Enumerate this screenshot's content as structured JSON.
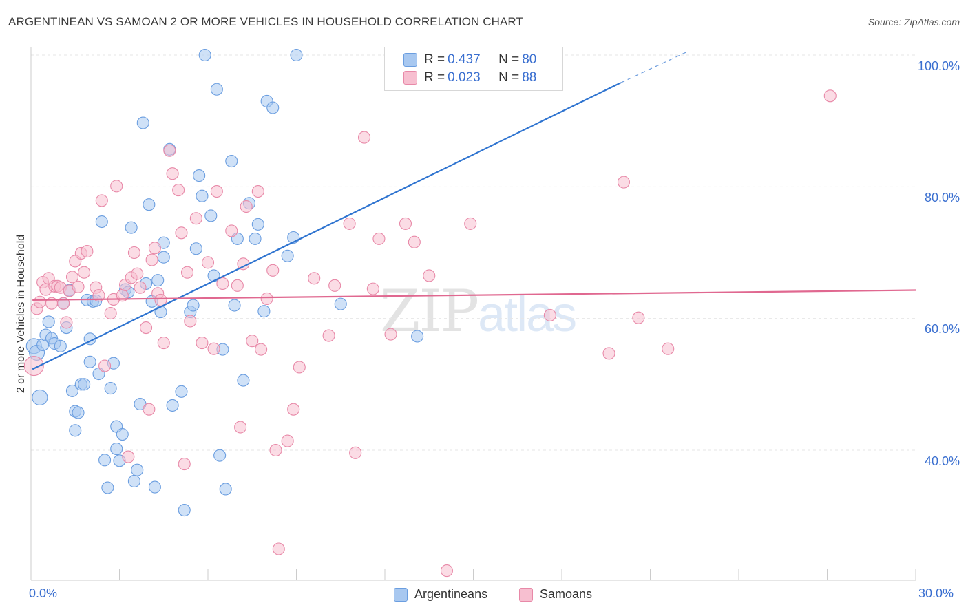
{
  "header": {
    "title": "ARGENTINEAN VS SAMOAN 2 OR MORE VEHICLES IN HOUSEHOLD CORRELATION CHART",
    "source": "Source: ZipAtlas.com"
  },
  "legend_stats": [
    {
      "r_label": "R =",
      "r_value": "0.437",
      "n_label": "N =",
      "n_value": "80"
    },
    {
      "r_label": "R =",
      "r_value": "0.023",
      "n_label": "N =",
      "n_value": "88"
    }
  ],
  "legend_bottom": [
    "Argentineans",
    "Samoans"
  ],
  "watermark": {
    "zip": "ZIP",
    "atlas": "atlas"
  },
  "colors": {
    "blue_fill": "#a8c8f0",
    "blue_stroke": "#6b9ee0",
    "blue_line": "#2f74d0",
    "pink_fill": "#f7bfd0",
    "pink_stroke": "#e889a8",
    "pink_line": "#e06890",
    "tick_text": "#3a6fd0",
    "grid": "#e6e6e6"
  },
  "chart_data": {
    "type": "scatter",
    "title": "ARGENTINEAN VS SAMOAN 2 OR MORE VEHICLES IN HOUSEHOLD CORRELATION CHART",
    "xlabel": "",
    "ylabel": "2 or more Vehicles in Household",
    "xlim": [
      0,
      30
    ],
    "ylim": [
      18,
      102
    ],
    "x_tick_labels": [
      "0.0%",
      "30.0%"
    ],
    "y_ticks": [
      40,
      60,
      80,
      100
    ],
    "y_tick_labels": [
      "40.0%",
      "60.0%",
      "80.0%",
      "100.0%"
    ],
    "grid": true,
    "legend_position": "top-center",
    "series": [
      {
        "name": "Argentineans",
        "r": 0.437,
        "n": 80,
        "trend": {
          "x": [
            0.05,
            20.0
          ],
          "y": [
            52.3,
            95.8
          ],
          "dashed_to": [
            22.3,
            100.6
          ]
        },
        "points": [
          [
            0.1,
            55.8
          ],
          [
            0.2,
            54.8
          ],
          [
            0.3,
            48.0
          ],
          [
            0.4,
            56.0
          ],
          [
            0.5,
            57.5
          ],
          [
            0.6,
            59.5
          ],
          [
            0.7,
            57.0
          ],
          [
            0.8,
            56.2
          ],
          [
            1.0,
            55.8
          ],
          [
            1.1,
            62.3
          ],
          [
            1.2,
            58.6
          ],
          [
            1.3,
            64.3
          ],
          [
            1.4,
            49.0
          ],
          [
            1.5,
            45.9
          ],
          [
            1.6,
            45.7
          ],
          [
            1.7,
            50.0
          ],
          [
            1.8,
            50.0
          ],
          [
            1.9,
            62.8
          ],
          [
            2.0,
            56.9
          ],
          [
            2.0,
            53.4
          ],
          [
            2.1,
            62.6
          ],
          [
            2.2,
            62.7
          ],
          [
            2.3,
            51.6
          ],
          [
            2.4,
            74.7
          ],
          [
            2.5,
            38.5
          ],
          [
            2.6,
            34.3
          ],
          [
            2.7,
            49.4
          ],
          [
            2.8,
            53.2
          ],
          [
            2.9,
            43.6
          ],
          [
            3.0,
            38.4
          ],
          [
            3.1,
            42.4
          ],
          [
            3.2,
            64.4
          ],
          [
            3.3,
            64.0
          ],
          [
            3.4,
            73.8
          ],
          [
            3.5,
            35.3
          ],
          [
            3.6,
            37.0
          ],
          [
            3.8,
            89.7
          ],
          [
            3.9,
            65.3
          ],
          [
            4.0,
            77.3
          ],
          [
            4.1,
            62.6
          ],
          [
            4.2,
            34.4
          ],
          [
            4.3,
            65.8
          ],
          [
            4.5,
            71.5
          ],
          [
            4.5,
            69.3
          ],
          [
            4.7,
            85.7
          ],
          [
            4.8,
            46.8
          ],
          [
            5.1,
            48.9
          ],
          [
            5.2,
            30.9
          ],
          [
            5.4,
            61.0
          ],
          [
            5.5,
            62.0
          ],
          [
            5.6,
            70.6
          ],
          [
            5.7,
            81.7
          ],
          [
            5.8,
            78.6
          ],
          [
            5.9,
            100.0
          ],
          [
            6.1,
            75.6
          ],
          [
            6.2,
            66.5
          ],
          [
            6.3,
            94.8
          ],
          [
            6.4,
            39.2
          ],
          [
            6.5,
            55.3
          ],
          [
            6.6,
            34.1
          ],
          [
            6.8,
            83.9
          ],
          [
            7.0,
            72.1
          ],
          [
            7.2,
            50.6
          ],
          [
            7.4,
            77.5
          ],
          [
            7.6,
            72.1
          ],
          [
            7.7,
            74.3
          ],
          [
            7.9,
            61.1
          ],
          [
            8.0,
            93.0
          ],
          [
            8.2,
            92.0
          ],
          [
            8.7,
            69.5
          ],
          [
            8.9,
            72.3
          ],
          [
            9.0,
            100.0
          ],
          [
            10.5,
            62.2
          ],
          [
            13.1,
            57.3
          ],
          [
            17.7,
            100.0
          ],
          [
            1.5,
            43.0
          ],
          [
            2.9,
            40.2
          ],
          [
            6.9,
            62.0
          ],
          [
            4.4,
            61.0
          ],
          [
            3.7,
            47.0
          ]
        ]
      },
      {
        "name": "Samoans",
        "r": 0.023,
        "n": 88,
        "trend": {
          "x": [
            0.05,
            30.0
          ],
          "y": [
            62.8,
            64.3
          ]
        },
        "points": [
          [
            0.1,
            52.8
          ],
          [
            0.2,
            61.5
          ],
          [
            0.3,
            62.5
          ],
          [
            0.4,
            65.5
          ],
          [
            0.5,
            64.4
          ],
          [
            0.6,
            66.1
          ],
          [
            0.7,
            62.3
          ],
          [
            0.8,
            64.9
          ],
          [
            0.9,
            64.9
          ],
          [
            1.0,
            64.7
          ],
          [
            1.1,
            62.3
          ],
          [
            1.2,
            59.4
          ],
          [
            1.3,
            64.2
          ],
          [
            1.4,
            66.3
          ],
          [
            1.5,
            68.7
          ],
          [
            1.6,
            64.8
          ],
          [
            1.7,
            69.9
          ],
          [
            1.8,
            67.0
          ],
          [
            1.9,
            70.2
          ],
          [
            2.2,
            64.7
          ],
          [
            2.3,
            63.5
          ],
          [
            2.4,
            77.9
          ],
          [
            2.5,
            52.8
          ],
          [
            2.7,
            60.8
          ],
          [
            2.8,
            62.9
          ],
          [
            2.9,
            80.1
          ],
          [
            3.1,
            63.5
          ],
          [
            3.2,
            65.1
          ],
          [
            3.3,
            39.0
          ],
          [
            3.4,
            66.2
          ],
          [
            3.5,
            70.0
          ],
          [
            3.6,
            66.8
          ],
          [
            3.7,
            64.7
          ],
          [
            3.9,
            58.6
          ],
          [
            4.0,
            46.2
          ],
          [
            4.1,
            68.9
          ],
          [
            4.2,
            70.7
          ],
          [
            4.3,
            63.8
          ],
          [
            4.4,
            62.8
          ],
          [
            4.5,
            56.3
          ],
          [
            4.7,
            85.5
          ],
          [
            4.8,
            82.0
          ],
          [
            5.0,
            79.5
          ],
          [
            5.1,
            73.0
          ],
          [
            5.2,
            37.9
          ],
          [
            5.3,
            67.0
          ],
          [
            5.4,
            59.6
          ],
          [
            5.6,
            75.2
          ],
          [
            5.8,
            56.3
          ],
          [
            6.0,
            68.5
          ],
          [
            6.2,
            55.4
          ],
          [
            6.3,
            79.3
          ],
          [
            6.5,
            65.3
          ],
          [
            6.8,
            73.3
          ],
          [
            7.0,
            65.0
          ],
          [
            7.1,
            43.5
          ],
          [
            7.2,
            68.3
          ],
          [
            7.3,
            77.0
          ],
          [
            7.5,
            56.6
          ],
          [
            7.7,
            79.3
          ],
          [
            7.8,
            55.3
          ],
          [
            8.0,
            63.0
          ],
          [
            8.2,
            67.3
          ],
          [
            8.3,
            40.0
          ],
          [
            8.4,
            25.0
          ],
          [
            8.7,
            41.4
          ],
          [
            8.9,
            46.2
          ],
          [
            9.1,
            52.6
          ],
          [
            9.6,
            66.1
          ],
          [
            10.1,
            57.4
          ],
          [
            10.3,
            65.0
          ],
          [
            10.8,
            74.4
          ],
          [
            11.0,
            39.6
          ],
          [
            11.3,
            87.5
          ],
          [
            11.6,
            64.5
          ],
          [
            11.8,
            72.1
          ],
          [
            12.2,
            57.6
          ],
          [
            12.7,
            74.4
          ],
          [
            13.0,
            71.6
          ],
          [
            13.5,
            66.5
          ],
          [
            14.1,
            21.7
          ],
          [
            14.9,
            74.4
          ],
          [
            17.6,
            60.5
          ],
          [
            19.6,
            54.7
          ],
          [
            20.1,
            80.7
          ],
          [
            20.6,
            60.1
          ],
          [
            21.6,
            55.4
          ],
          [
            27.1,
            93.8
          ]
        ]
      }
    ]
  }
}
